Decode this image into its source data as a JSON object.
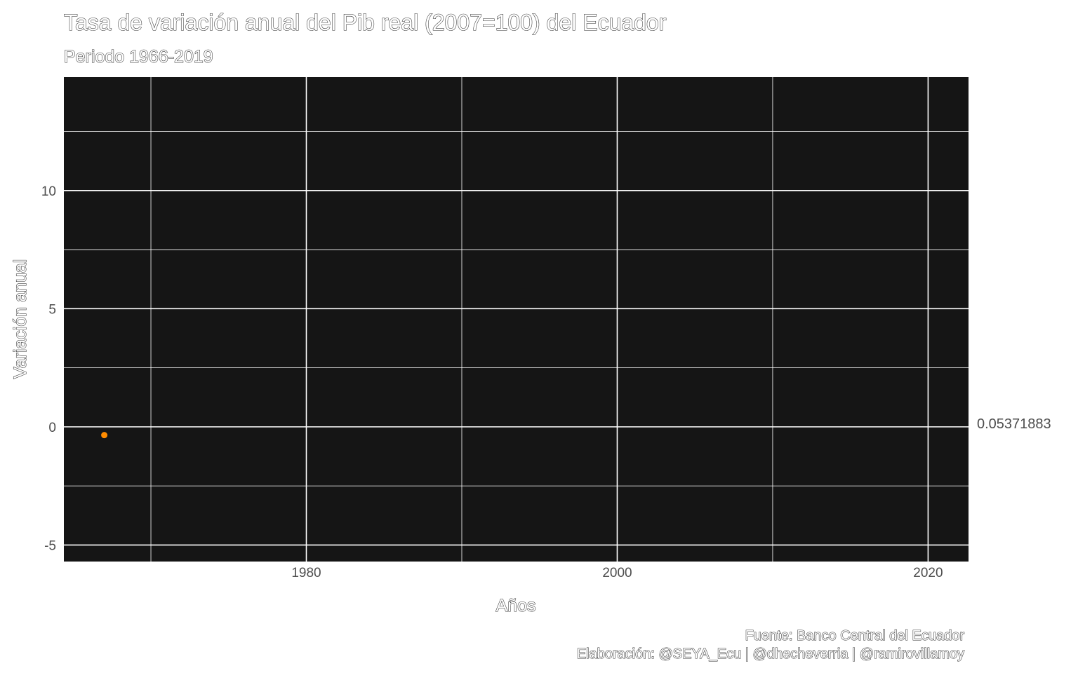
{
  "chart_data": {
    "type": "scatter",
    "title": "Tasa de variación anual del Pib real (2007=100) del Ecuador",
    "subtitle": "Periodo 1966-2019",
    "xlabel": "Años",
    "ylabel": "Variación anual",
    "caption_lines": [
      "Fuente: Banco Central del Ecuador",
      "Elaboración: @SEYA_Ecu | @dhecheverria | @ramirovillamoy"
    ],
    "xlim": [
      1964.4,
      2022.6
    ],
    "ylim": [
      -5.7,
      14.8
    ],
    "x_ticks": [
      1980,
      2000,
      2020
    ],
    "y_ticks": [
      -5,
      0,
      5,
      10
    ],
    "x_ticks_minor": [
      1970,
      1990,
      2010
    ],
    "y_ticks_minor": [
      -2.5,
      2.5,
      7.5,
      12.5
    ],
    "grid": true,
    "background": "#151515",
    "grid_color": "#ffffff",
    "point_color": "#ff8c00",
    "points": [
      {
        "x": 1967,
        "y": -0.35
      }
    ],
    "value_label": {
      "text": "0.05371883",
      "y": 0.05371883
    }
  }
}
